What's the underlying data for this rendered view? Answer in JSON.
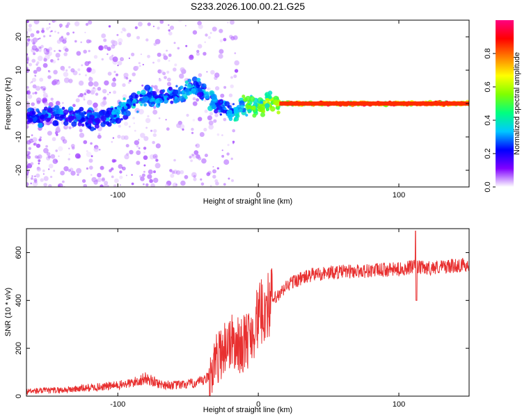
{
  "title": "S233.2026.100.00.21.G25",
  "chart_data": [
    {
      "type": "heatmap",
      "name": "spectrogram",
      "xlabel": "Height of straight line (km)",
      "ylabel": "Frequency (Hz)",
      "xlim": [
        -165,
        150
      ],
      "ylim": [
        -25,
        25
      ],
      "xticks": [
        -100,
        0,
        100
      ],
      "xtick_labels": [
        "-100",
        "0",
        "100"
      ],
      "yticks": [
        -20,
        -10,
        0,
        10,
        20
      ],
      "ytick_labels": [
        "-20",
        "-10",
        "0",
        "10",
        "20"
      ],
      "colorbar": {
        "label": "Normalized spectral amplitude",
        "range": [
          0,
          1
        ],
        "ticks": [
          0.0,
          0.2,
          0.4,
          0.6,
          0.8
        ],
        "tick_labels": [
          "0.0",
          "0.2",
          "0.4",
          "0.6",
          "0.8"
        ],
        "stops": [
          "#ffffff",
          "#8000ff",
          "#0000ff",
          "#00c8ff",
          "#00ff80",
          "#80ff00",
          "#ffff00",
          "#ff8000",
          "#ff0000",
          "#ff0080"
        ]
      },
      "ridge": {
        "x": [
          -165,
          -150,
          -135,
          -120,
          -110,
          -100,
          -90,
          -80,
          -70,
          -60,
          -50,
          -42,
          -35,
          -28,
          -22,
          -18,
          -14,
          -10,
          -6,
          -2,
          2,
          6,
          10,
          15,
          20,
          40,
          60,
          80,
          100,
          120,
          140,
          150
        ],
        "freq": [
          -4,
          -3,
          -4,
          -5,
          -4,
          -3,
          0,
          2,
          1,
          3,
          4,
          5,
          2,
          -1,
          -2,
          -3,
          -2,
          -1,
          0,
          -1,
          -1,
          0,
          0,
          0,
          0,
          0,
          0,
          0,
          0,
          0,
          0,
          0
        ],
        "amplitude": [
          0.25,
          0.3,
          0.3,
          0.28,
          0.3,
          0.35,
          0.35,
          0.35,
          0.3,
          0.3,
          0.35,
          0.3,
          0.35,
          0.3,
          0.3,
          0.35,
          0.45,
          0.5,
          0.55,
          0.55,
          0.55,
          0.6,
          0.65,
          0.7,
          0.8,
          0.85,
          0.85,
          0.9,
          0.85,
          0.9,
          0.85,
          0.8
        ]
      }
    },
    {
      "type": "line",
      "name": "snr",
      "xlabel": "Height of straight line (km)",
      "ylabel": "SNR (10 * v/v)",
      "xlim": [
        -165,
        150
      ],
      "ylim": [
        0,
        700
      ],
      "xticks": [
        -100,
        0,
        100
      ],
      "xtick_labels": [
        "-100",
        "0",
        "100"
      ],
      "yticks": [
        0,
        200,
        400,
        600
      ],
      "ytick_labels": [
        "0",
        "200",
        "400",
        "600"
      ],
      "color": "#e83030",
      "envelope": {
        "x": [
          -165,
          -140,
          -120,
          -100,
          -90,
          -80,
          -70,
          -60,
          -50,
          -40,
          -35,
          -30,
          -25,
          -20,
          -15,
          -10,
          -5,
          0,
          5,
          10,
          15,
          20,
          25,
          30,
          40,
          60,
          80,
          100,
          110,
          120,
          140,
          150
        ],
        "y": [
          20,
          25,
          35,
          45,
          55,
          75,
          50,
          45,
          50,
          60,
          80,
          150,
          200,
          230,
          210,
          220,
          260,
          330,
          370,
          400,
          420,
          460,
          480,
          490,
          510,
          520,
          525,
          530,
          540,
          535,
          545,
          550
        ]
      }
    }
  ]
}
